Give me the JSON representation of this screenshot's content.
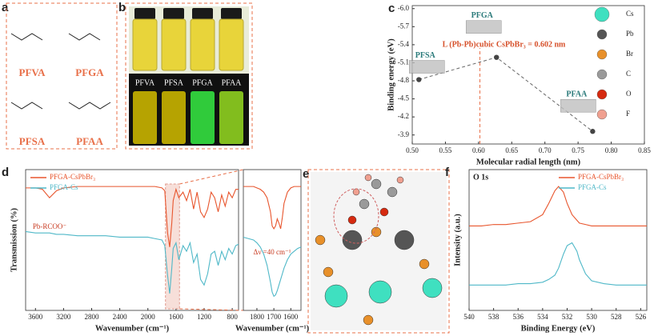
{
  "panels": {
    "a": {
      "label": "a",
      "molecules": [
        "PFVA",
        "PFGA",
        "PFSA",
        "PFAA"
      ]
    },
    "b": {
      "label": "b",
      "vials": [
        "PFVA",
        "PFSA",
        "PFGA",
        "PFAA"
      ]
    },
    "e": {
      "label": "e"
    }
  },
  "chart_data": [
    {
      "type": "scatter",
      "panel_label": "c",
      "x_label": "Molecular radial length (nm)",
      "y_label": "Binding energy (eV)",
      "x": [
        0.51,
        0.627,
        0.772
      ],
      "values": [
        -4.82,
        -5.19,
        -3.96
      ],
      "point_labels": [
        "PFSA",
        "PFGA",
        "PFAA"
      ],
      "color": "#444444",
      "xlim": [
        0.5,
        0.85
      ],
      "xticks": [
        {
          "value": 0.5,
          "label": "0.50"
        },
        0.55,
        {
          "value": 0.6,
          "label": "0.60"
        },
        0.65,
        {
          "value": 0.7,
          "label": "0.70"
        },
        0.75,
        {
          "value": 0.8,
          "label": "0.80"
        },
        0.85
      ],
      "ylim": [
        -3.75,
        -6.05
      ],
      "yticks": [
        {
          "value": -6,
          "label": "-6.0"
        },
        -5.7,
        -5.4,
        -5.1,
        -4.8,
        -4.5,
        -4.2,
        -3.9
      ],
      "annotation": "L (Pb-Pb)cubic CsPbBr₃ = 0.602 nm",
      "refline_x": 0.602,
      "legend_items": [
        {
          "name": "Cs",
          "color": "#3fe0c0"
        },
        {
          "name": "Pb",
          "color": "#555555"
        },
        {
          "name": "Br",
          "color": "#e8902a"
        },
        {
          "name": "C",
          "color": "#9a9a9a"
        },
        {
          "name": "O",
          "color": "#d62a10"
        },
        {
          "name": "F",
          "color": "#f0a090"
        }
      ]
    },
    {
      "type": "line",
      "panel_label": "d",
      "x_label": "Wavenumber (cm⁻¹)",
      "y_label": "Transmission (%)",
      "legend": "upper left",
      "x": [
        3740,
        3600,
        3500,
        3400,
        3300,
        3200,
        3000,
        2800,
        2600,
        2400,
        2200,
        2000,
        1900,
        1800,
        1760,
        1720,
        1690,
        1660,
        1640,
        1600,
        1560,
        1500,
        1450,
        1400,
        1350,
        1300,
        1250,
        1200,
        1150,
        1100,
        1050,
        1000,
        950,
        900,
        850,
        800,
        750,
        710
      ],
      "series": [
        {
          "name": "PFGA-CsPbBr₃",
          "color": "#e8552d",
          "values": [
            0.87,
            0.87,
            0.86,
            0.8,
            0.85,
            0.87,
            0.88,
            0.88,
            0.88,
            0.88,
            0.88,
            0.88,
            0.88,
            0.87,
            0.85,
            0.55,
            0.45,
            0.62,
            0.78,
            0.86,
            0.8,
            0.84,
            0.78,
            0.86,
            0.72,
            0.84,
            0.7,
            0.66,
            0.72,
            0.84,
            0.8,
            0.7,
            0.82,
            0.74,
            0.84,
            0.8,
            0.86,
            0.86
          ]
        },
        {
          "name": "PFGA-Cs",
          "color": "#4fb8c8",
          "values": [
            0.56,
            0.55,
            0.55,
            0.55,
            0.54,
            0.54,
            0.53,
            0.53,
            0.53,
            0.52,
            0.52,
            0.52,
            0.51,
            0.5,
            0.46,
            0.25,
            0.12,
            0.3,
            0.44,
            0.48,
            0.36,
            0.46,
            0.42,
            0.48,
            0.34,
            0.4,
            0.22,
            0.18,
            0.26,
            0.4,
            0.42,
            0.32,
            0.42,
            0.36,
            0.44,
            0.4,
            0.46,
            0.47
          ]
        }
      ],
      "xlim": [
        3740,
        710
      ],
      "xticks": [
        3600,
        3200,
        2800,
        2400,
        2000,
        1600,
        1200,
        800
      ],
      "ylim": [
        0,
        1
      ],
      "highlight": [
        1750,
        1550
      ],
      "annotation": "Pb-RCOO⁻"
    },
    {
      "type": "line",
      "x_label": "Wavenumber (cm⁻¹)",
      "x": [
        1880,
        1850,
        1820,
        1800,
        1780,
        1760,
        1740,
        1720,
        1710,
        1700,
        1690,
        1680,
        1670,
        1660,
        1650,
        1640,
        1620,
        1600,
        1580,
        1560,
        1540
      ],
      "series": [
        {
          "color": "#e8552d",
          "values": [
            0.88,
            0.88,
            0.88,
            0.87,
            0.86,
            0.84,
            0.8,
            0.7,
            0.6,
            0.58,
            0.6,
            0.65,
            0.62,
            0.58,
            0.66,
            0.76,
            0.84,
            0.87,
            0.88,
            0.88,
            0.88
          ]
        },
        {
          "color": "#4fb8c8",
          "values": [
            0.52,
            0.51,
            0.5,
            0.48,
            0.45,
            0.4,
            0.32,
            0.2,
            0.13,
            0.1,
            0.11,
            0.14,
            0.18,
            0.22,
            0.26,
            0.3,
            0.36,
            0.4,
            0.42,
            0.44,
            0.45
          ]
        }
      ],
      "xlim": [
        1880,
        1540
      ],
      "xticks": [
        1800,
        1700,
        1600
      ],
      "ylim": [
        0,
        1
      ],
      "annotation": "Δν =40 cm⁻¹"
    },
    {
      "type": "line",
      "panel_label": "f",
      "title": "O 1s",
      "x_label": "Binding Energy (eV)",
      "y_label": "Intensity (a.u.)",
      "legend": "upper right",
      "x": [
        540,
        539,
        538,
        537,
        536,
        535,
        534,
        533.5,
        533,
        532.7,
        532.3,
        532,
        531.6,
        531.2,
        531,
        530.5,
        530,
        529,
        528,
        527,
        526,
        525.5
      ],
      "series": [
        {
          "name": "PFGA-CsPbBr₃",
          "color": "#e8552d",
          "values": [
            0.6,
            0.6,
            0.61,
            0.61,
            0.62,
            0.63,
            0.68,
            0.76,
            0.85,
            0.88,
            0.84,
            0.76,
            0.68,
            0.64,
            0.62,
            0.61,
            0.6,
            0.6,
            0.6,
            0.6,
            0.6,
            0.6
          ]
        },
        {
          "name": "PFGA-Cs",
          "color": "#4fb8c8",
          "values": [
            0.18,
            0.18,
            0.18,
            0.18,
            0.19,
            0.19,
            0.2,
            0.22,
            0.25,
            0.3,
            0.4,
            0.46,
            0.48,
            0.42,
            0.36,
            0.26,
            0.21,
            0.19,
            0.18,
            0.18,
            0.18,
            0.18
          ]
        }
      ],
      "xlim": [
        540,
        525.5
      ],
      "xticks": [
        540,
        538,
        536,
        534,
        532,
        530,
        528,
        526
      ],
      "ylim": [
        0,
        1
      ]
    }
  ]
}
